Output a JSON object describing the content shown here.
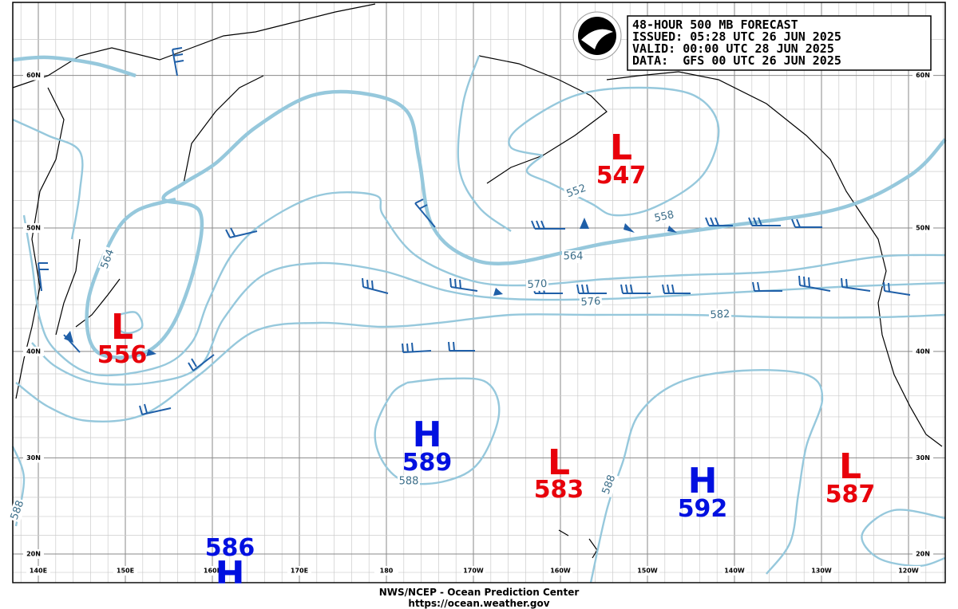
{
  "header": {
    "lines": [
      "48-HOUR 500 MB FORECAST",
      "ISSUED: 05:28 UTC 26 JUN 2025",
      "VALID:  00:00 UTC 28 JUN 2025",
      "DATA:  GFS 00 UTC 26 JUN 2025"
    ]
  },
  "lat_labels": [
    "60N",
    "50N",
    "40N",
    "30N",
    "20N"
  ],
  "lon_labels": [
    "140E",
    "150E",
    "160E",
    "170E",
    "180",
    "170W",
    "160W",
    "150W",
    "140W",
    "130W",
    "120W"
  ],
  "centers": [
    {
      "letter": "L",
      "value": 547
    },
    {
      "letter": "L",
      "value": 556
    },
    {
      "letter": "H",
      "value": 589
    },
    {
      "letter": "L",
      "value": 583
    },
    {
      "letter": "H",
      "value": 592
    },
    {
      "letter": "L",
      "value": 587
    },
    {
      "letter": "H",
      "value": 586
    }
  ],
  "contour_labels": [
    552,
    558,
    564,
    570,
    576,
    582,
    588,
    588,
    564,
    588
  ],
  "footer": [
    "NWS/NCEP - Ocean Prediction Center",
    "https://ocean.weather.gov"
  ]
}
